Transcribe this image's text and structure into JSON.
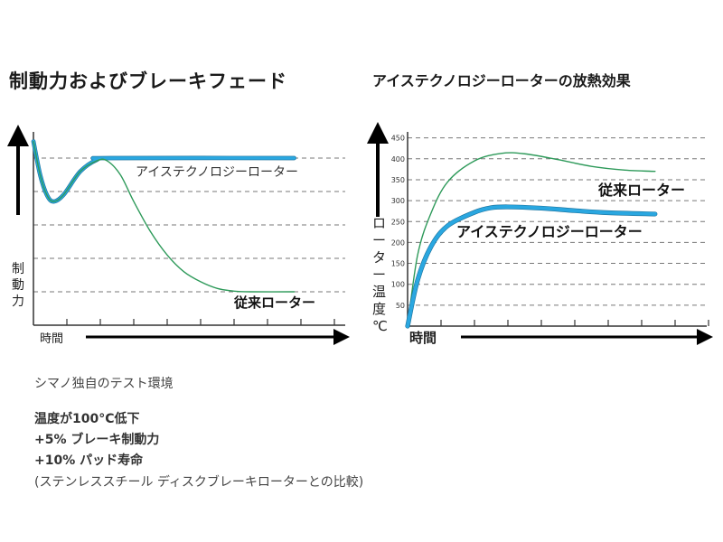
{
  "chart_data": [
    {
      "type": "line",
      "title": "制動力およびブレーキフェード",
      "xlabel": "時間",
      "ylabel": "制動力",
      "xlim": [
        0,
        9
      ],
      "ylim": [
        0,
        5.8
      ],
      "grid": "dashed horizontal",
      "series": [
        {
          "name": "アイステクノロジーローター",
          "color": "#2aa7e0",
          "points": [
            [
              0,
              5.5
            ],
            [
              0.2,
              4.5
            ],
            [
              0.4,
              3.9
            ],
            [
              0.6,
              3.7
            ],
            [
              0.9,
              3.9
            ],
            [
              1.4,
              4.6
            ],
            [
              1.9,
              4.95
            ],
            [
              2.3,
              5
            ],
            [
              7.8,
              5
            ]
          ]
        },
        {
          "name": "従来ローター",
          "color": "#2e9a5a",
          "points": [
            [
              0,
              5.5
            ],
            [
              0.2,
              4.5
            ],
            [
              0.4,
              3.9
            ],
            [
              0.6,
              3.7
            ],
            [
              0.9,
              3.9
            ],
            [
              1.4,
              4.6
            ],
            [
              1.9,
              4.92
            ],
            [
              2.2,
              4.92
            ],
            [
              2.6,
              4.5
            ],
            [
              3,
              3.7
            ],
            [
              3.5,
              2.8
            ],
            [
              4,
              2.1
            ],
            [
              4.5,
              1.6
            ],
            [
              5,
              1.3
            ],
            [
              5.5,
              1.1
            ],
            [
              6,
              1.02
            ],
            [
              6.5,
              1
            ],
            [
              7.8,
              1
            ]
          ]
        }
      ]
    },
    {
      "type": "line",
      "title": "アイステクノロジーローターの放熱効果",
      "xlabel": "時間",
      "ylabel": "ローター温度（℃）",
      "xlim": [
        0,
        9
      ],
      "ylim": [
        0,
        450
      ],
      "yticks": [
        "50",
        "100",
        "150",
        "200",
        "250",
        "300",
        "350",
        "400",
        "450"
      ],
      "grid": "dashed horizontal",
      "series": [
        {
          "name": "従来ローター",
          "color": "#2e9a5a",
          "points": [
            [
              0,
              0
            ],
            [
              0.3,
              170
            ],
            [
              0.7,
              270
            ],
            [
              1.2,
              345
            ],
            [
              2,
              395
            ],
            [
              2.8,
              413
            ],
            [
              3.5,
              412
            ],
            [
              4.5,
              398
            ],
            [
              5.5,
              382
            ],
            [
              6.5,
              373
            ],
            [
              7.4,
              370
            ]
          ]
        },
        {
          "name": "アイステクノロジーローター",
          "color": "#2aa7e0",
          "points": [
            [
              0,
              0
            ],
            [
              0.3,
              110
            ],
            [
              0.7,
              190
            ],
            [
              1.2,
              240
            ],
            [
              2,
              272
            ],
            [
              2.5,
              283
            ],
            [
              3,
              285
            ],
            [
              4,
              282
            ],
            [
              5,
              276
            ],
            [
              6,
              271
            ],
            [
              7.4,
              268
            ]
          ]
        }
      ]
    }
  ],
  "labels": {
    "left_ice": "アイステクノロジーローター",
    "left_conv": "従来ローター",
    "left_ylabel": [
      "制",
      "動",
      "力"
    ],
    "right_conv": "従来ローター",
    "right_ice": "アイステクノロジーローター",
    "right_ylabel": [
      "ロ",
      "ー",
      "タ",
      "ー",
      "温",
      "度",
      "℃"
    ]
  },
  "notes": {
    "env": "シマノ独自のテスト環境",
    "line1": "温度が100°C低下",
    "line2": "+5% ブレーキ制動力",
    "line3": "+10% パッド寿命",
    "line4": "(ステンレススチール ディスクブレーキローターとの比較)"
  }
}
